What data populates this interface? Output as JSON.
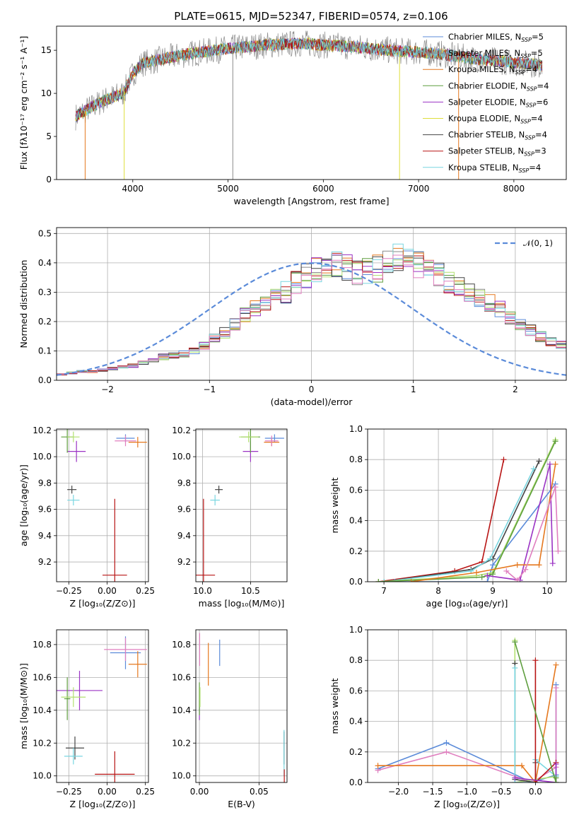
{
  "figure_title": "PLATE=0615, MJD=52347, FIBERID=0574, z=0.106",
  "colors": {
    "chabrier_miles": "#5b8bd9",
    "salpeter_miles": "#8a8a8a",
    "kroupa_miles": "#e5781e",
    "chabrier_elodie": "#5e9e3e",
    "salpeter_elodie": "#9b33c4",
    "kroupa_elodie": "#dede3a",
    "chabrier_stelib": "#444444",
    "salpeter_stelib": "#b81414",
    "kroupa_stelib": "#79d6e0",
    "pink": "#e07fbf",
    "lightgreen": "#b2e070",
    "gauss": "#5b8bd9",
    "grid": "#b0b0b0"
  },
  "chart_data": [
    {
      "type": "line",
      "id": "spectrum",
      "xlabel": "wavelength [Angstrom, rest frame]",
      "ylabel": "Flux [fλ10⁻¹⁷ erg cm⁻² s⁻¹ A⁻¹]",
      "xlim": [
        3200,
        8550
      ],
      "ylim": [
        0,
        17.8
      ],
      "xticks": [
        4000,
        5000,
        6000,
        7000,
        8000
      ],
      "yticks": [
        0,
        5,
        10,
        15
      ],
      "grid": false,
      "legend_position": "right",
      "legend": [
        {
          "label": "Chabrier MILES, N_SSP=5",
          "color_key": "chabrier_miles"
        },
        {
          "label": "Salpeter MILES, N_SSP=5",
          "color_key": "salpeter_miles"
        },
        {
          "label": "Kroupa MILES, N_SSP=4",
          "color_key": "kroupa_miles"
        },
        {
          "label": "Chabrier ELODIE, N_SSP=4",
          "color_key": "chabrier_elodie"
        },
        {
          "label": "Salpeter ELODIE, N_SSP=6",
          "color_key": "salpeter_elodie"
        },
        {
          "label": "Kroupa ELODIE, N_SSP=4",
          "color_key": "kroupa_elodie"
        },
        {
          "label": "Chabrier STELIB, N_SSP=4",
          "color_key": "chabrier_stelib"
        },
        {
          "label": "Salpeter STELIB, N_SSP=3",
          "color_key": "salpeter_stelib"
        },
        {
          "label": "Kroupa STELIB, N_SSP=4",
          "color_key": "kroupa_stelib"
        }
      ],
      "continuum": {
        "x": [
          3400,
          3500,
          3600,
          3700,
          3800,
          3900,
          4000,
          4100,
          4200,
          4400,
          4600,
          4800,
          5000,
          5200,
          5400,
          5600,
          5800,
          6000,
          6200,
          6400,
          6600,
          6800,
          7000,
          7200,
          7400,
          7600,
          7800,
          8000,
          8200,
          8300
        ],
        "y": [
          7.3,
          8.0,
          8.6,
          9.2,
          9.6,
          10.0,
          12.3,
          13.5,
          13.7,
          14.2,
          14.6,
          14.9,
          15.2,
          15.4,
          15.6,
          15.7,
          15.8,
          15.6,
          15.5,
          15.3,
          15.1,
          14.9,
          14.8,
          14.6,
          14.3,
          14.0,
          13.8,
          13.6,
          13.4,
          13.2
        ]
      },
      "spikes": [
        {
          "x": 3500,
          "ymin": 0,
          "color_key": "kroupa_miles"
        },
        {
          "x": 3910,
          "ymin": 0,
          "color_key": "kroupa_elodie"
        },
        {
          "x": 5050,
          "ymin": 0,
          "color_key": "salpeter_miles"
        },
        {
          "x": 6800,
          "ymin": 0,
          "color_key": "kroupa_elodie"
        },
        {
          "x": 7420,
          "ymin": 0,
          "color_key": "kroupa_miles"
        }
      ]
    },
    {
      "type": "histogram",
      "id": "residuals",
      "xlabel": "(data-model)/error",
      "ylabel": "Normed distribution",
      "xlim": [
        -2.5,
        2.5
      ],
      "ylim": [
        0,
        0.52
      ],
      "xticks": [
        -2,
        -1,
        0,
        1,
        2
      ],
      "yticks": [
        0.0,
        0.1,
        0.2,
        0.3,
        0.4,
        0.5
      ],
      "grid": true,
      "legend_position": "top-right",
      "legend": [
        {
          "label": "𝒩(0, 1)",
          "color_key": "gauss",
          "style": "dashed"
        }
      ],
      "bin_width": 0.1,
      "bin_start": -2.5,
      "reference_values": [
        0.02,
        0.025,
        0.03,
        0.03,
        0.035,
        0.04,
        0.045,
        0.05,
        0.06,
        0.07,
        0.08,
        0.085,
        0.09,
        0.1,
        0.12,
        0.14,
        0.16,
        0.19,
        0.22,
        0.25,
        0.27,
        0.28,
        0.3,
        0.33,
        0.36,
        0.38,
        0.37,
        0.39,
        0.38,
        0.37,
        0.37,
        0.38,
        0.41,
        0.42,
        0.4,
        0.39,
        0.37,
        0.36,
        0.34,
        0.32,
        0.3,
        0.28,
        0.26,
        0.24,
        0.21,
        0.19,
        0.17,
        0.15,
        0.13,
        0.12,
        0.11,
        0.1,
        0.09,
        0.08,
        0.07,
        0.06,
        0.05,
        0.045,
        0.04,
        0.035,
        0.03,
        0.03,
        0.025,
        0.03,
        0.035,
        0.03,
        0.03,
        0.03,
        0.03,
        0.03
      ]
    },
    {
      "type": "errorbar",
      "id": "age_vs_Z",
      "xlabel": "Z [log₁₀(Z/Z⊙)]",
      "ylabel": "age  [log₁₀(age/yr)]",
      "xlim": [
        -0.33,
        0.27
      ],
      "ylim": [
        9.05,
        10.21
      ],
      "xticks": [
        -0.25,
        0.0,
        0.25
      ],
      "xticklabels": [
        "−0.25",
        "0.00",
        "0.25"
      ],
      "yticks": [
        9.2,
        9.4,
        9.6,
        9.8,
        10.0,
        10.2
      ],
      "grid": true,
      "points": [
        {
          "x": 0.12,
          "y": 10.14,
          "xerr": 0.06,
          "yerr": 0.03,
          "color_key": "chabrier_miles"
        },
        {
          "x": 0.2,
          "y": 10.11,
          "xerr": 0.06,
          "yerr": 0.04,
          "color_key": "kroupa_miles"
        },
        {
          "x": 0.12,
          "y": 10.12,
          "xerr": 0.07,
          "yerr": 0.04,
          "color_key": "pink"
        },
        {
          "x": -0.2,
          "y": 10.04,
          "xerr": 0.06,
          "yerr": 0.08,
          "color_key": "salpeter_elodie"
        },
        {
          "x": -0.26,
          "y": 10.15,
          "xerr": 0.04,
          "yerr": 0.12,
          "color_key": "chabrier_elodie"
        },
        {
          "x": -0.22,
          "y": 10.15,
          "xerr": 0.04,
          "yerr": 0.04,
          "color_key": "lightgreen"
        },
        {
          "x": -0.23,
          "y": 9.75,
          "xerr": 0.03,
          "yerr": 0.03,
          "color_key": "chabrier_stelib"
        },
        {
          "x": -0.22,
          "y": 9.67,
          "xerr": 0.04,
          "yerr": 0.04,
          "color_key": "kroupa_stelib"
        },
        {
          "x": 0.05,
          "y": 9.1,
          "xerr": 0.08,
          "yerr": 0.58,
          "color_key": "salpeter_stelib"
        }
      ]
    },
    {
      "type": "errorbar",
      "id": "age_vs_mass",
      "xlabel": "mass [log₁₀(M/M⊙)]",
      "ylabel": "",
      "xlim": [
        9.93,
        10.88
      ],
      "ylim": [
        9.05,
        10.21
      ],
      "xticks": [
        10.0,
        10.5
      ],
      "xticklabels": [
        "10.0",
        "10.5"
      ],
      "yticks": [
        9.2,
        9.4,
        9.6,
        9.8,
        10.0,
        10.2
      ],
      "grid": true,
      "points": [
        {
          "x": 10.75,
          "y": 10.14,
          "xerr": 0.1,
          "yerr": 0.03,
          "color_key": "chabrier_miles"
        },
        {
          "x": 10.72,
          "y": 10.11,
          "xerr": 0.08,
          "yerr": 0.03,
          "color_key": "kroupa_miles"
        },
        {
          "x": 10.72,
          "y": 10.12,
          "xerr": 0.07,
          "yerr": 0.04,
          "color_key": "pink"
        },
        {
          "x": 10.5,
          "y": 10.04,
          "xerr": 0.08,
          "yerr": 0.08,
          "color_key": "salpeter_elodie"
        },
        {
          "x": 10.5,
          "y": 10.15,
          "xerr": 0.1,
          "yerr": 0.12,
          "color_key": "chabrier_elodie"
        },
        {
          "x": 10.48,
          "y": 10.15,
          "xerr": 0.1,
          "yerr": 0.04,
          "color_key": "lightgreen"
        },
        {
          "x": 10.17,
          "y": 9.75,
          "xerr": 0.04,
          "yerr": 0.03,
          "color_key": "chabrier_stelib"
        },
        {
          "x": 10.13,
          "y": 9.67,
          "xerr": 0.05,
          "yerr": 0.04,
          "color_key": "kroupa_stelib"
        },
        {
          "x": 10.01,
          "y": 9.1,
          "xerr": 0.12,
          "yerr": 0.58,
          "color_key": "salpeter_stelib"
        }
      ]
    },
    {
      "type": "line",
      "id": "massweight_vs_age",
      "xlabel": "age  [log₁₀(age/yr)]",
      "ylabel": "mass weight",
      "xlim": [
        6.7,
        10.35
      ],
      "ylim": [
        0,
        1
      ],
      "xticks": [
        7,
        8,
        9,
        10
      ],
      "yticks": [
        0.0,
        0.2,
        0.4,
        0.6,
        0.8,
        1.0
      ],
      "grid": true,
      "series": [
        {
          "color_key": "salpeter_stelib",
          "x": [
            6.9,
            8.3,
            8.8,
            9.2
          ],
          "y": [
            0.0,
            0.07,
            0.13,
            0.8
          ]
        },
        {
          "color_key": "chabrier_stelib",
          "x": [
            7.0,
            8.6,
            9.0,
            9.85
          ],
          "y": [
            0.0,
            0.08,
            0.15,
            0.79
          ]
        },
        {
          "color_key": "kroupa_stelib",
          "x": [
            7.0,
            8.6,
            8.95,
            9.75
          ],
          "y": [
            0.0,
            0.07,
            0.15,
            0.74
          ]
        },
        {
          "color_key": "chabrier_miles",
          "x": [
            7.2,
            8.9,
            9.0,
            10.15
          ],
          "y": [
            0.0,
            0.0,
            0.11,
            0.64
          ]
        },
        {
          "color_key": "lightgreen",
          "x": [
            6.9,
            8.7,
            9.0,
            10.15
          ],
          "y": [
            0.0,
            0.04,
            0.06,
            0.93
          ]
        },
        {
          "color_key": "chabrier_elodie",
          "x": [
            6.9,
            8.8,
            9.0,
            10.15
          ],
          "y": [
            0.0,
            0.03,
            0.05,
            0.92
          ]
        },
        {
          "color_key": "salpeter_elodie",
          "x": [
            8.9,
            9.5,
            10.05,
            10.1
          ],
          "y": [
            0.04,
            0.01,
            0.77,
            0.12
          ]
        },
        {
          "color_key": "kroupa_miles",
          "x": [
            7.5,
            8.7,
            9.45,
            9.85,
            10.15
          ],
          "y": [
            0.0,
            0.06,
            0.11,
            0.11,
            0.77
          ]
        },
        {
          "color_key": "pink",
          "x": [
            9.25,
            9.45,
            9.6,
            10.15,
            10.2
          ],
          "y": [
            0.07,
            0.01,
            0.08,
            0.62,
            0.2
          ]
        }
      ]
    },
    {
      "type": "errorbar",
      "id": "mass_vs_Z",
      "xlabel": "Z [log₁₀(Z/Z⊙)]",
      "ylabel": "mass [log₁₀(M/M⊙)]",
      "xlim": [
        -0.33,
        0.27
      ],
      "ylim": [
        9.96,
        10.89
      ],
      "xticks": [
        -0.25,
        0.0,
        0.25
      ],
      "xticklabels": [
        "−0.25",
        "0.00",
        "0.25"
      ],
      "yticks": [
        10.0,
        10.2,
        10.4,
        10.6,
        10.8
      ],
      "grid": true,
      "points": [
        {
          "x": 0.12,
          "y": 10.75,
          "xerr": 0.1,
          "yerr": 0.1,
          "color_key": "chabrier_miles"
        },
        {
          "x": 0.2,
          "y": 10.68,
          "xerr": 0.06,
          "yerr": 0.08,
          "color_key": "kroupa_miles"
        },
        {
          "x": 0.12,
          "y": 10.77,
          "xerr": 0.14,
          "yerr": 0.07,
          "color_key": "pink"
        },
        {
          "x": -0.18,
          "y": 10.52,
          "xerr": 0.15,
          "yerr": 0.12,
          "color_key": "salpeter_elodie"
        },
        {
          "x": -0.26,
          "y": 10.47,
          "xerr": 0.02,
          "yerr": 0.13,
          "color_key": "chabrier_elodie"
        },
        {
          "x": -0.22,
          "y": 10.48,
          "xerr": 0.08,
          "yerr": 0.06,
          "color_key": "lightgreen"
        },
        {
          "x": -0.21,
          "y": 10.17,
          "xerr": 0.06,
          "yerr": 0.07,
          "color_key": "chabrier_stelib"
        },
        {
          "x": -0.22,
          "y": 10.12,
          "xerr": 0.06,
          "yerr": 0.05,
          "color_key": "kroupa_stelib"
        },
        {
          "x": 0.05,
          "y": 10.01,
          "xerr": 0.13,
          "yerr": 0.14,
          "color_key": "salpeter_stelib"
        }
      ]
    },
    {
      "type": "errorbar",
      "id": "mass_vs_EBV",
      "xlabel": "E(B-V)",
      "ylabel": "",
      "xlim": [
        -0.003,
        0.0735
      ],
      "ylim": [
        9.96,
        10.89
      ],
      "xticks": [
        0.0,
        0.05
      ],
      "xticklabels": [
        "0.00",
        "0.05"
      ],
      "yticks": [
        10.0,
        10.2,
        10.4,
        10.6,
        10.8
      ],
      "grid": true,
      "points": [
        {
          "x": 0.017,
          "y": 10.75,
          "xerr": 0,
          "yerr": 0.08,
          "color_key": "chabrier_miles"
        },
        {
          "x": 0.0075,
          "y": 10.68,
          "xerr": 0,
          "yerr": 0.13,
          "color_key": "kroupa_miles"
        },
        {
          "x": 0.0002,
          "y": 10.77,
          "xerr": 0,
          "yerr": 0.1,
          "color_key": "pink"
        },
        {
          "x": 0.0,
          "y": 10.4,
          "xerr": 0,
          "yerr": 0.06,
          "color_key": "salpeter_elodie"
        },
        {
          "x": 0.0,
          "y": 10.47,
          "xerr": 0,
          "yerr": 0.1,
          "color_key": "chabrier_elodie"
        },
        {
          "x": 0.0005,
          "y": 10.48,
          "xerr": 0,
          "yerr": 0.06,
          "color_key": "lightgreen"
        },
        {
          "x": 0.071,
          "y": 10.17,
          "xerr": 0,
          "yerr": 0.1,
          "color_key": "chabrier_stelib"
        },
        {
          "x": 0.071,
          "y": 10.14,
          "xerr": 0,
          "yerr": 0.14,
          "color_key": "kroupa_stelib"
        },
        {
          "x": 0.0712,
          "y": 10.0,
          "xerr": 0,
          "yerr": 0.04,
          "color_key": "salpeter_stelib"
        }
      ]
    },
    {
      "type": "line",
      "id": "massweight_vs_Z",
      "xlabel": "Z [log₁₀(Z/Z⊙)]",
      "ylabel": "mass weight",
      "xlim": [
        -2.45,
        0.45
      ],
      "ylim": [
        0,
        1
      ],
      "xticks": [
        -2.0,
        -1.5,
        -1.0,
        -0.5,
        0.0
      ],
      "xticklabels": [
        "−2.0",
        "−1.5",
        "−1.0",
        "−0.5",
        "0.0"
      ],
      "yticks": [
        0.0,
        0.2,
        0.4,
        0.6,
        0.8,
        1.0
      ],
      "grid": true,
      "series": [
        {
          "color_key": "chabrier_miles",
          "x": [
            -2.3,
            -1.3,
            -0.05,
            0.3,
            0.3
          ],
          "y": [
            0.09,
            0.26,
            0.0,
            0.05,
            0.64
          ]
        },
        {
          "color_key": "pink",
          "x": [
            -2.3,
            -1.3,
            -0.05,
            0.3,
            0.3
          ],
          "y": [
            0.08,
            0.2,
            0.0,
            0.1,
            0.62
          ]
        },
        {
          "color_key": "kroupa_miles",
          "x": [
            -2.3,
            -0.2,
            0.0,
            0.3
          ],
          "y": [
            0.11,
            0.11,
            0.0,
            0.77
          ]
        },
        {
          "color_key": "lightgreen",
          "x": [
            -0.3,
            -0.3,
            0.3
          ],
          "y": [
            0.93,
            0.0,
            0.04
          ]
        },
        {
          "color_key": "chabrier_stelib",
          "x": [
            -0.3,
            -0.3,
            0.0,
            0.0
          ],
          "y": [
            0.78,
            0.02,
            0.0,
            0.13
          ]
        },
        {
          "color_key": "kroupa_stelib",
          "x": [
            -0.3,
            -0.3,
            0.0,
            0.0,
            0.3
          ],
          "y": [
            0.75,
            0.0,
            0.0,
            0.15,
            0.04
          ]
        },
        {
          "color_key": "salpeter_stelib",
          "x": [
            0.0,
            0.0,
            0.3
          ],
          "y": [
            0.8,
            0.0,
            0.13
          ]
        },
        {
          "color_key": "salpeter_elodie",
          "x": [
            -0.3,
            0.3,
            0.3
          ],
          "y": [
            0.03,
            0.0,
            0.12
          ]
        },
        {
          "color_key": "chabrier_elodie",
          "x": [
            -0.3,
            0.3,
            0.3
          ],
          "y": [
            0.92,
            0.0,
            0.03
          ]
        }
      ]
    }
  ]
}
